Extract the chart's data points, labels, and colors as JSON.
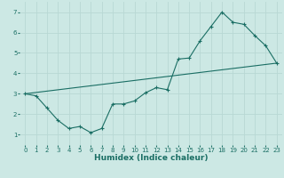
{
  "xlabel": "Humidex (Indice chaleur)",
  "ylabel": "",
  "bg_color": "#cce8e4",
  "grid_color": "#b8d8d4",
  "line_color": "#1a6e64",
  "xlim": [
    -0.5,
    23.5
  ],
  "ylim": [
    0.5,
    7.5
  ],
  "xticks": [
    0,
    1,
    2,
    3,
    4,
    5,
    6,
    7,
    8,
    9,
    10,
    11,
    12,
    13,
    14,
    15,
    16,
    17,
    18,
    19,
    20,
    21,
    22,
    23
  ],
  "yticks": [
    1,
    2,
    3,
    4,
    5,
    6,
    7
  ],
  "curve1_x": [
    0,
    1,
    2,
    3,
    4,
    5,
    6,
    7,
    8,
    9,
    10,
    11,
    12,
    13,
    14,
    15,
    16,
    17,
    18,
    19,
    20,
    21,
    22,
    23
  ],
  "curve1_y": [
    3.0,
    2.9,
    2.3,
    1.7,
    1.3,
    1.4,
    1.1,
    1.3,
    2.5,
    2.5,
    2.65,
    3.05,
    3.3,
    3.2,
    4.7,
    4.75,
    5.6,
    6.3,
    7.0,
    6.5,
    6.4,
    5.85,
    5.35,
    4.5
  ],
  "curve2_x": [
    0,
    23
  ],
  "curve2_y": [
    3.0,
    4.5
  ],
  "tick_fontsize": 5.0,
  "xlabel_fontsize": 6.5,
  "linewidth": 0.8,
  "markersize": 3.0
}
